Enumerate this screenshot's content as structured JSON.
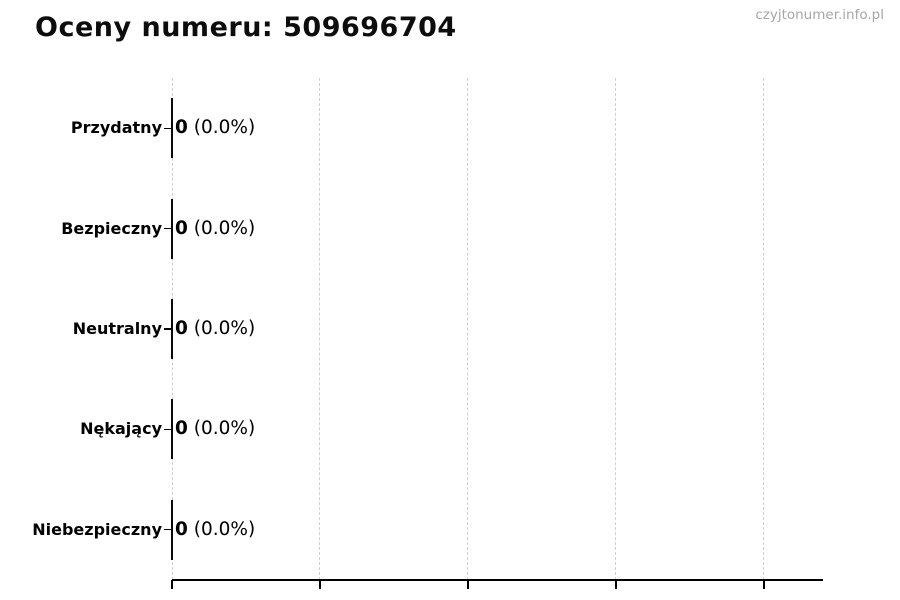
{
  "page": {
    "watermark": "czyjtonumer.info.pl"
  },
  "chart_data": {
    "type": "bar",
    "orientation": "horizontal",
    "title": "Oceny numeru: 509696704",
    "categories": [
      "Przydatny",
      "Bezpieczny",
      "Neutralny",
      "Nękający",
      "Niebezpieczny"
    ],
    "values": [
      0,
      0,
      0,
      0,
      0
    ],
    "bars": [
      {
        "label": "Przydatny",
        "count": "0",
        "percent": "(0.0%)"
      },
      {
        "label": "Bezpieczny",
        "count": "0",
        "percent": "(0.0%)"
      },
      {
        "label": "Neutralny",
        "count": "0",
        "percent": "(0.0%)"
      },
      {
        "label": "Nękający",
        "count": "0",
        "percent": "(0.0%)"
      },
      {
        "label": "Niebezpieczny",
        "count": "0",
        "percent": "(0.0%)"
      }
    ],
    "xlabel": "",
    "ylabel": "",
    "xlim": [
      0,
      1.1
    ],
    "xticks": [
      0,
      0.25,
      0.5,
      0.75,
      1.0
    ],
    "xtick_labels_visible": false,
    "grid": true,
    "legend": "none",
    "colors": {
      "text": "#000000",
      "axis": "#000000",
      "grid": "#cfcfcf",
      "zero_bar": "#0a0a0a",
      "watermark": "#a6a6a6",
      "background": "#ffffff"
    }
  }
}
